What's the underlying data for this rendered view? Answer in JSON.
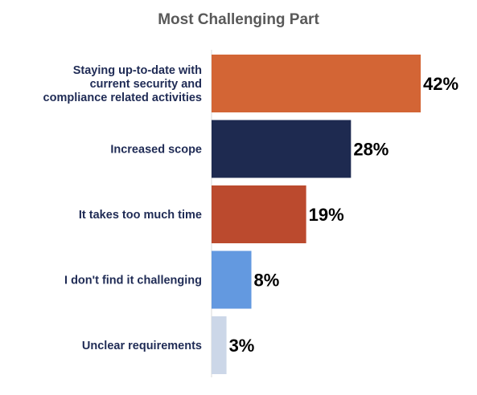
{
  "chart_data": {
    "type": "bar",
    "orientation": "horizontal",
    "title": "Most Challenging Part",
    "categories": [
      [
        "Staying up-to-date with",
        "current security and",
        "compliance related activities"
      ],
      [
        "Increased scope"
      ],
      [
        "It takes too much time"
      ],
      [
        "I don't find it challenging"
      ],
      [
        "Unclear requirements"
      ]
    ],
    "values": [
      42,
      28,
      19,
      8,
      3
    ],
    "value_labels": [
      "42%",
      "28%",
      "19%",
      "8%",
      "3%"
    ],
    "bar_colors": [
      "#d36535",
      "#1e2a50",
      "#bb4a2e",
      "#6399e0",
      "#ccd7e8"
    ],
    "unit": "%",
    "xlim": [
      0,
      42
    ],
    "grid": false,
    "legend": "none"
  }
}
